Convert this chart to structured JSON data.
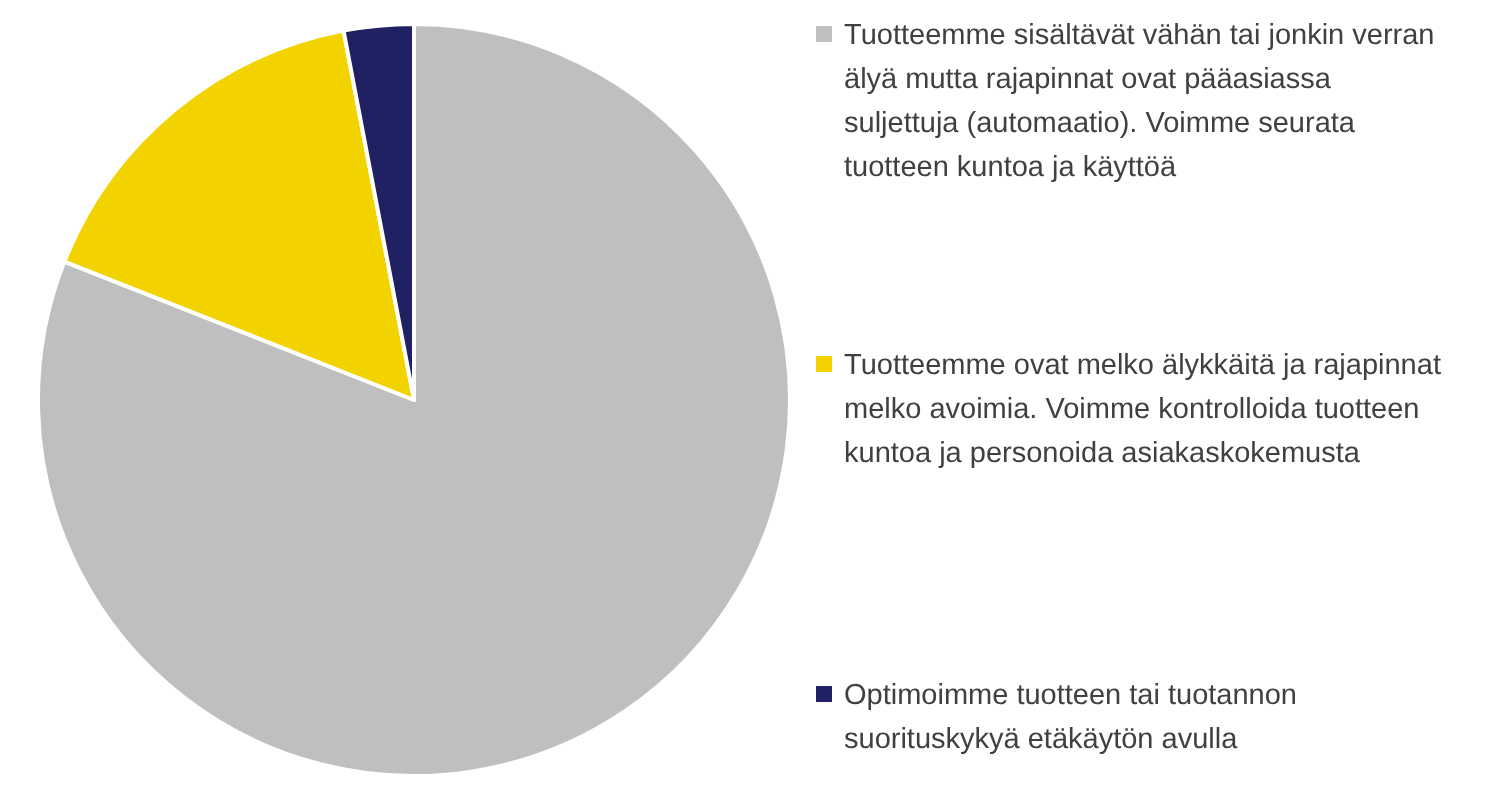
{
  "chart_data": {
    "type": "pie",
    "categories": [
      "Tuotteemme sisältävät vähän tai jonkin verran älyä mutta rajapinnat ovat pääasiassa suljettuja (automaatio). Voimme seurata tuotteen kuntoa ja käyttöä",
      "Tuotteemme ovat melko älykkäitä ja rajapinnat melko avoimia. Voimme kontrolloida tuotteen kuntoa ja personoida asiakaskokemusta",
      "Optimoimme tuotteen tai tuotannon suorituskykyä etäkäytön avulla"
    ],
    "values": [
      81,
      16,
      3
    ],
    "colors": [
      "#bfbfbf",
      "#f2d300",
      "#1f2162"
    ],
    "legend": "right"
  }
}
